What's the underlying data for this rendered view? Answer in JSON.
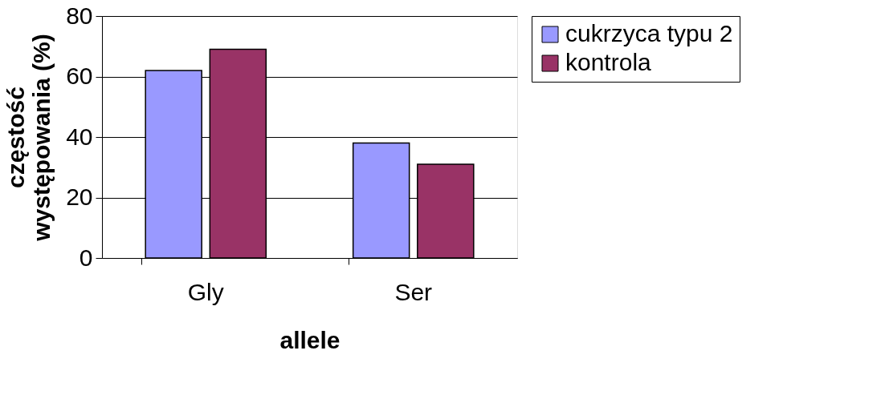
{
  "chart_data": {
    "type": "bar",
    "xlabel": "allele",
    "ylabel": "częstość występowania (%)",
    "categories": [
      "Gly",
      "Ser"
    ],
    "series": [
      {
        "name": "cukrzyca typu 2",
        "color": "#9999ff",
        "values": [
          62,
          38
        ]
      },
      {
        "name": "kontrola",
        "color": "#993366",
        "values": [
          69,
          31
        ]
      }
    ],
    "ylim": [
      0,
      80
    ],
    "yticks": [
      0,
      20,
      40,
      60,
      80
    ],
    "grid": "y",
    "legend": "right"
  }
}
